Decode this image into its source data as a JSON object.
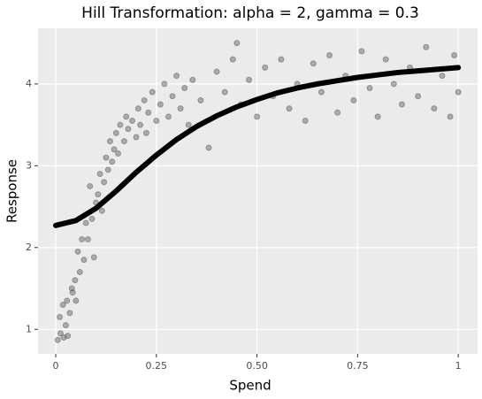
{
  "chart_data": {
    "type": "scatter",
    "title": "Hill Transformation: alpha = 2, gamma = 0.3",
    "x_label": "Spend",
    "y_label": "Response",
    "xlim": [
      -0.044,
      1.048
    ],
    "ylim": [
      0.7,
      4.68
    ],
    "xticks": [
      0,
      0.25,
      {
        "value": 0.5,
        "label": "0.50"
      },
      0.75,
      1
    ],
    "yticks": [
      1,
      2,
      3,
      4
    ],
    "grid": true,
    "series": [
      {
        "type": "scatter",
        "color": "#5a5a5a",
        "x": [
          0.005,
          0.01,
          0.012,
          0.018,
          0.02,
          0.025,
          0.028,
          0.03,
          0.035,
          0.04,
          0.042,
          0.048,
          0.05,
          0.055,
          0.06,
          0.065,
          0.07,
          0.075,
          0.08,
          0.085,
          0.09,
          0.095,
          0.1,
          0.105,
          0.11,
          0.115,
          0.12,
          0.125,
          0.13,
          0.135,
          0.14,
          0.145,
          0.15,
          0.155,
          0.16,
          0.17,
          0.175,
          0.18,
          0.19,
          0.2,
          0.205,
          0.21,
          0.22,
          0.225,
          0.23,
          0.24,
          0.25,
          0.26,
          0.27,
          0.28,
          0.29,
          0.3,
          0.31,
          0.32,
          0.33,
          0.34,
          0.36,
          0.38,
          0.4,
          0.42,
          0.44,
          0.45,
          0.46,
          0.48,
          0.5,
          0.52,
          0.54,
          0.56,
          0.58,
          0.6,
          0.62,
          0.64,
          0.66,
          0.68,
          0.7,
          0.72,
          0.74,
          0.76,
          0.78,
          0.8,
          0.82,
          0.84,
          0.86,
          0.88,
          0.9,
          0.92,
          0.94,
          0.96,
          0.98,
          0.99,
          1.0
        ],
        "values": [
          0.87,
          1.15,
          0.95,
          1.3,
          0.9,
          1.05,
          1.35,
          0.92,
          1.2,
          1.5,
          1.45,
          1.6,
          1.35,
          1.95,
          1.7,
          2.1,
          1.85,
          2.3,
          2.1,
          2.75,
          2.35,
          1.88,
          2.55,
          2.65,
          2.9,
          2.45,
          2.8,
          3.1,
          2.95,
          3.3,
          3.05,
          3.2,
          3.4,
          3.15,
          3.5,
          3.3,
          3.6,
          3.45,
          3.55,
          3.35,
          3.7,
          3.5,
          3.8,
          3.4,
          3.65,
          3.9,
          3.55,
          3.75,
          4.0,
          3.6,
          3.85,
          4.1,
          3.7,
          3.95,
          3.5,
          4.05,
          3.8,
          3.22,
          4.15,
          3.9,
          4.3,
          4.5,
          3.75,
          4.05,
          3.6,
          4.2,
          3.85,
          4.3,
          3.7,
          4.0,
          3.55,
          4.25,
          3.9,
          4.35,
          3.65,
          4.1,
          3.8,
          4.4,
          3.95,
          3.6,
          4.3,
          4.0,
          3.75,
          4.2,
          3.85,
          4.45,
          3.7,
          4.1,
          3.6,
          4.35,
          3.9
        ]
      },
      {
        "type": "line",
        "color": "#000000",
        "x": [
          0,
          0.05,
          0.1,
          0.15,
          0.2,
          0.25,
          0.3,
          0.35,
          0.4,
          0.45,
          0.5,
          0.55,
          0.6,
          0.65,
          0.7,
          0.75,
          0.8,
          0.85,
          0.9,
          0.95,
          1
        ],
        "values": [
          2.27,
          2.33,
          2.48,
          2.69,
          2.92,
          3.13,
          3.32,
          3.48,
          3.61,
          3.72,
          3.81,
          3.89,
          3.95,
          4.0,
          4.04,
          4.08,
          4.11,
          4.14,
          4.16,
          4.18,
          4.2
        ]
      }
    ]
  }
}
